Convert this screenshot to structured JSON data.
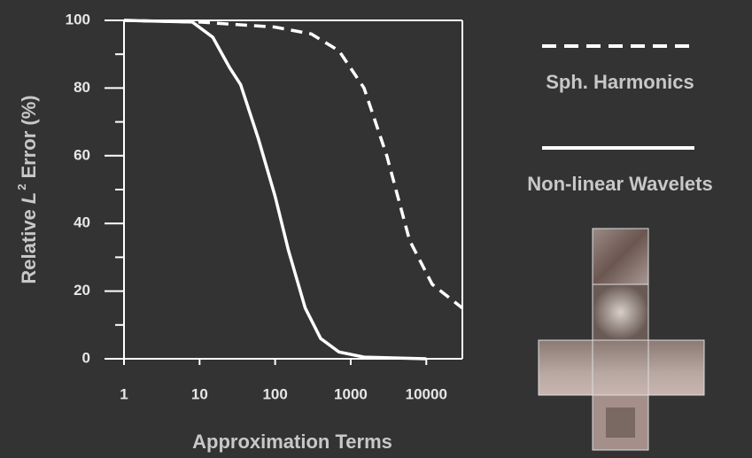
{
  "chart_data": {
    "type": "line",
    "x_label": "Approximation Terms",
    "y_label": [
      "Relative",
      "L",
      "2",
      "Error (%)"
    ],
    "xscale": "log",
    "xlim": [
      1,
      30000
    ],
    "ylim": [
      0,
      100
    ],
    "xticks": [
      1,
      10,
      100,
      1000,
      10000
    ],
    "yticks": [
      0,
      20,
      40,
      60,
      80,
      100
    ],
    "y_minor_ticks": [
      10,
      30,
      50,
      70,
      90
    ],
    "legend": "right",
    "series": [
      {
        "name": "Sph. Harmonics",
        "color": "#ffffff",
        "dash": true,
        "x": [
          1,
          10,
          100,
          300,
          700,
          1500,
          3000,
          6000,
          12000,
          30000
        ],
        "values": [
          100,
          99.5,
          98,
          96,
          91,
          80,
          60,
          35,
          22,
          15
        ]
      },
      {
        "name": "Non-linear Wavelets",
        "color": "#ffffff",
        "dash": false,
        "x": [
          1,
          8,
          15,
          25,
          35,
          60,
          100,
          150,
          250,
          400,
          700,
          1500,
          10000
        ],
        "values": [
          100,
          99.5,
          95,
          86,
          81,
          65,
          48,
          32,
          15,
          6,
          2,
          0.5,
          0
        ]
      }
    ]
  }
}
